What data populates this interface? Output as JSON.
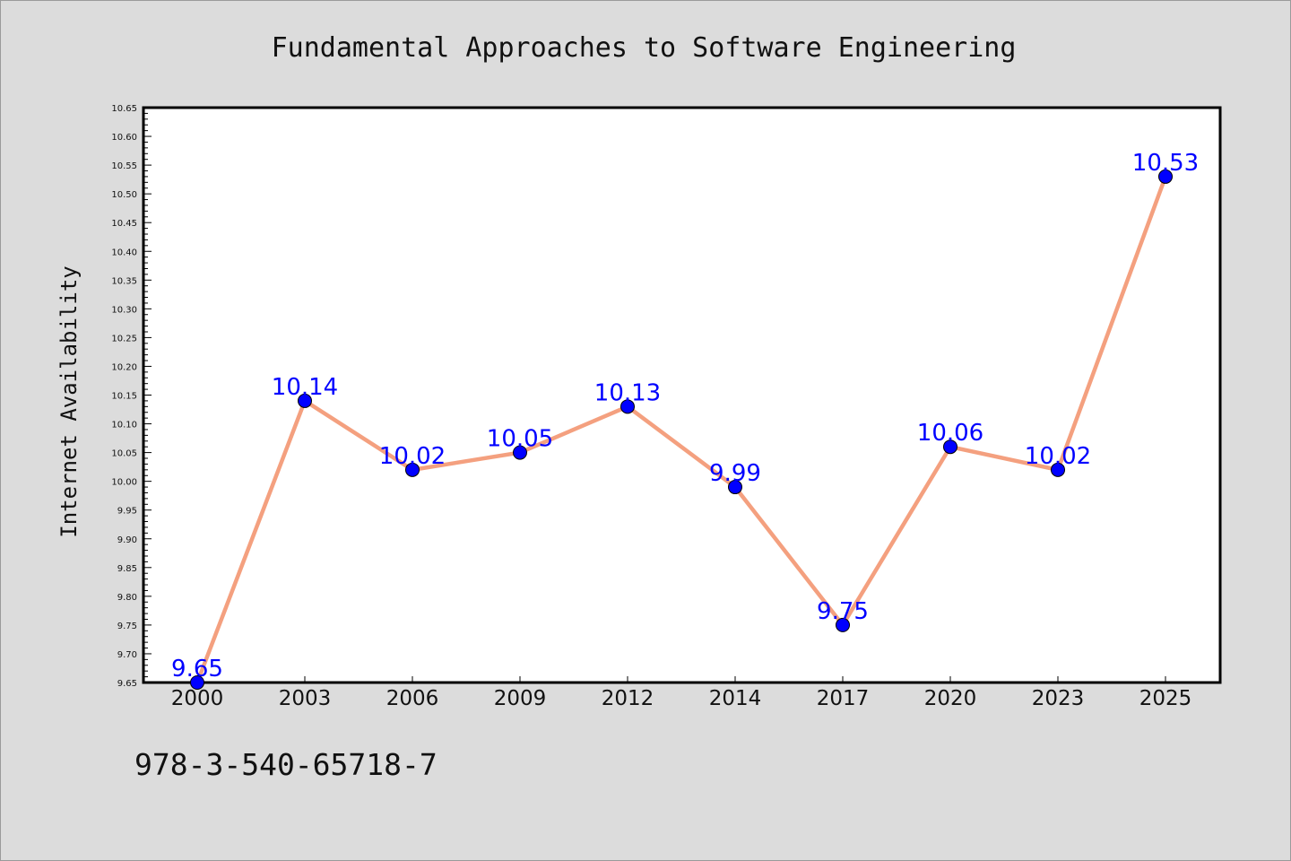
{
  "chart_data": {
    "type": "line",
    "title": "Fundamental Approaches to Software Engineering",
    "xlabel": "",
    "ylabel": "Internet Availability",
    "categories": [
      "2000",
      "2003",
      "2006",
      "2009",
      "2012",
      "2014",
      "2017",
      "2020",
      "2023",
      "2025"
    ],
    "values": [
      9.65,
      10.14,
      10.02,
      10.05,
      10.13,
      9.99,
      9.75,
      10.06,
      10.02,
      10.53
    ],
    "data_labels": [
      "9.65",
      "10.14",
      "10.02",
      "10.05",
      "10.13",
      "9.99",
      "9.75",
      "10.06",
      "10.02",
      "10.53"
    ],
    "ylim": [
      9.65,
      10.65
    ],
    "yticks": [
      "9.65",
      "9.70",
      "9.75",
      "9.80",
      "9.85",
      "9.90",
      "9.95",
      "10.00",
      "10.05",
      "10.10",
      "10.15",
      "10.20",
      "10.25",
      "10.30",
      "10.35",
      "10.40",
      "10.45",
      "10.50",
      "10.55",
      "10.60",
      "10.65"
    ],
    "grid": false,
    "legend": "none",
    "line_color": "#f4a07f",
    "marker_color": "#0000ff",
    "label_color": "#0000ff"
  },
  "footer": {
    "isbn": "978-3-540-65718-7"
  }
}
